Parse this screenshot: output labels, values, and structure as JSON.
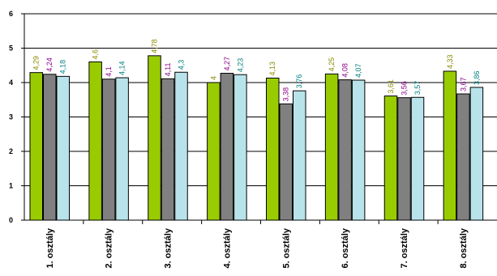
{
  "chart_data": {
    "type": "bar",
    "categories": [
      "1. osztály",
      "2. osztály",
      "3. osztály",
      "4. osztály",
      "5. osztály",
      "6. osztály",
      "7. osztály",
      "8. osztály"
    ],
    "series": [
      {
        "values": [
          4.29,
          4.6,
          4.78,
          4,
          4.13,
          4.25,
          3.61,
          4.33
        ],
        "labels": [
          "4,29",
          "4,6",
          "4,78",
          "4",
          "4,13",
          "4,25",
          "3,61",
          "4,33"
        ],
        "color": "#99cc00",
        "label_color": "#8b8b00"
      },
      {
        "values": [
          4.24,
          4.1,
          4.11,
          4.27,
          3.38,
          4.08,
          3.56,
          3.67
        ],
        "labels": [
          "4,24",
          "4,1",
          "4,11",
          "4,27",
          "3,38",
          "4,08",
          "3,56",
          "3,67"
        ],
        "color": "#808080",
        "label_color": "#8b008b"
      },
      {
        "values": [
          4.18,
          4.14,
          4.3,
          4.23,
          3.76,
          4.07,
          3.57,
          3.86
        ],
        "labels": [
          "4,18",
          "4,14",
          "4,3",
          "4,23",
          "3,76",
          "4,07",
          "3,57",
          "3,86"
        ],
        "color": "#b9e3eb",
        "label_color": "#008080"
      }
    ],
    "y_ticks": [
      "0",
      "1",
      "2",
      "3",
      "4",
      "5",
      "6"
    ],
    "ylim": [
      0,
      6
    ],
    "grid": true,
    "title": "",
    "xlabel": "",
    "ylabel": ""
  }
}
